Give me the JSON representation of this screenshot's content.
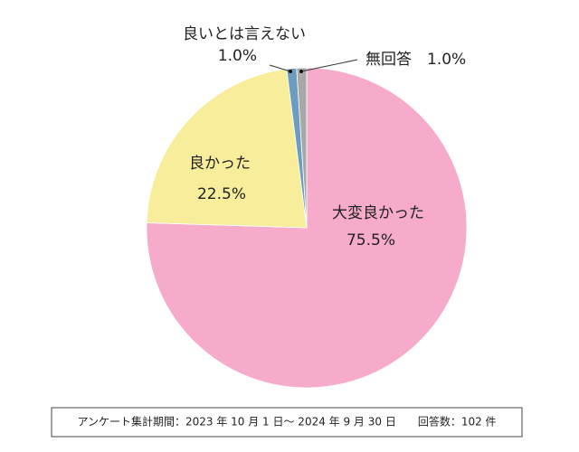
{
  "chart_data": {
    "type": "pie",
    "categories": [
      "大変良かった",
      "良かった",
      "良いとは言えない",
      "無回答"
    ],
    "values": [
      75.5,
      22.5,
      1.0,
      1.0
    ],
    "value_labels": [
      "75.5%",
      "22.5%",
      "1.0%",
      "1.0%"
    ],
    "colors": [
      "#f5abc9",
      "#f7ed9b",
      "#6c9dc1",
      "#a8a8a8"
    ]
  },
  "footer": "アンケート集計期間：2023 年 10 月 1 日～ 2024 年 9 月 30 日　　回答数：102 件"
}
